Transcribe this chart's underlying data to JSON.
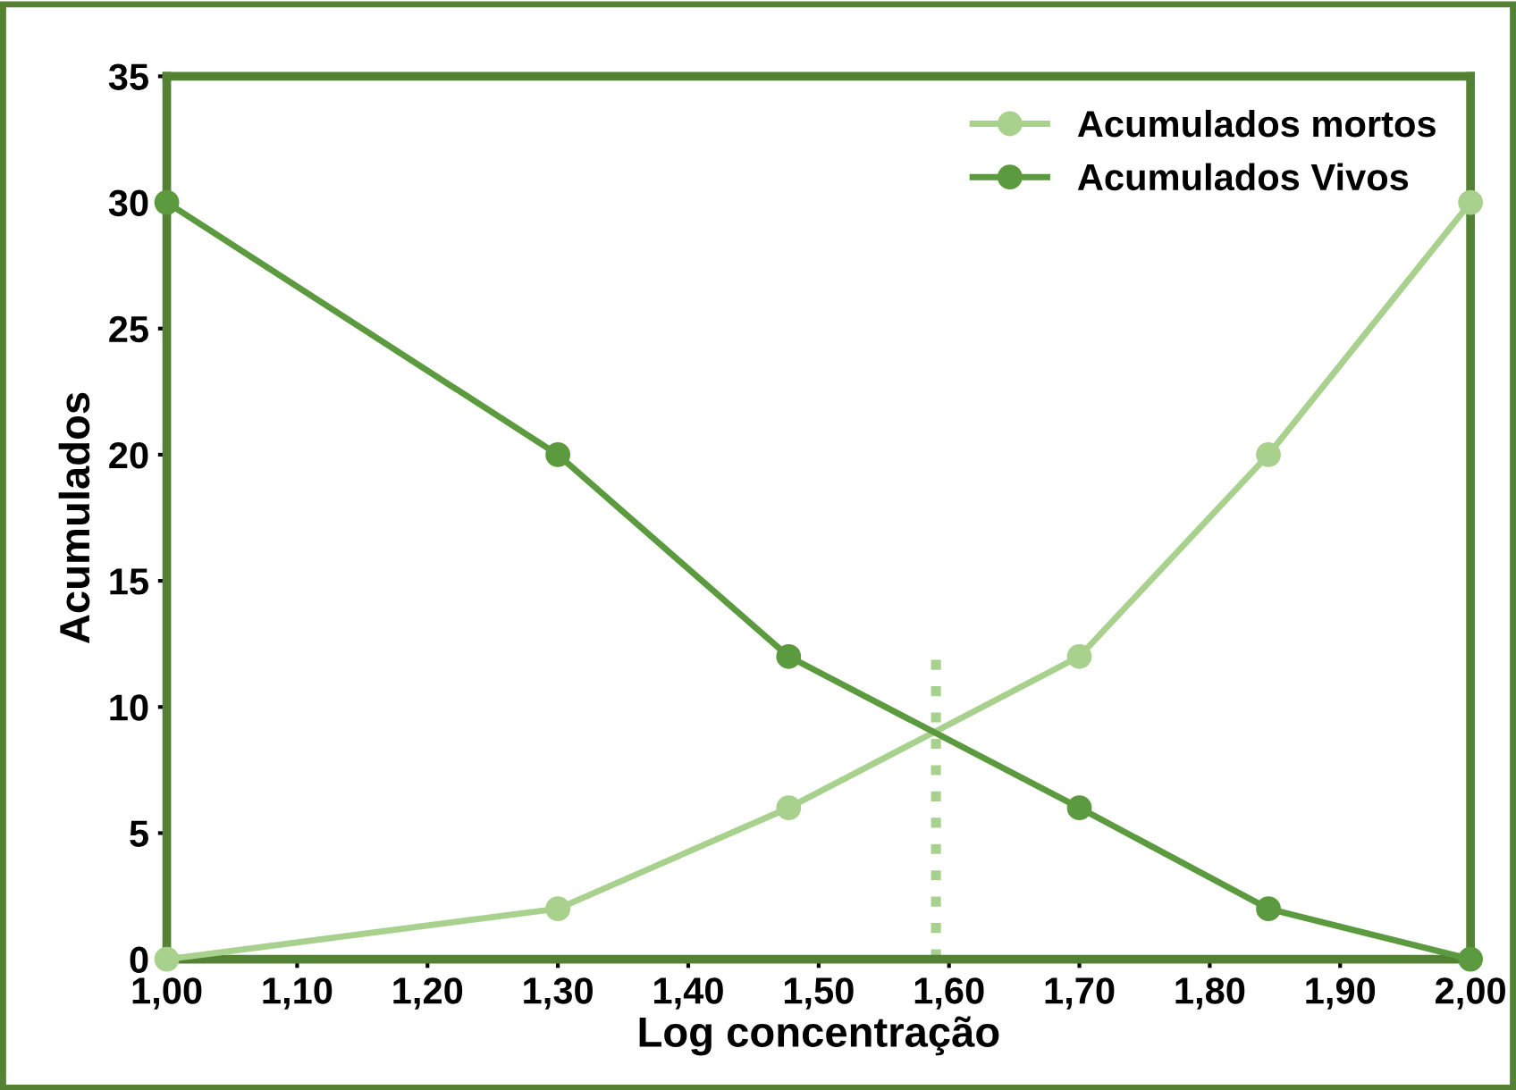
{
  "chart_data": {
    "type": "line",
    "xlabel": "Log concentração",
    "ylabel": "Acumulados",
    "x": [
      1.0,
      1.3,
      1.477,
      1.7,
      1.845,
      2.0
    ],
    "series": [
      {
        "name": "Acumulados mortos",
        "color": "#a9d18e",
        "values": [
          0,
          2,
          6,
          12,
          20,
          30
        ]
      },
      {
        "name": "Acumulados Vivos",
        "color": "#5b9a3e",
        "values": [
          30,
          20,
          12,
          6,
          2,
          0
        ]
      }
    ],
    "xlim": [
      1.0,
      2.0
    ],
    "xticks": [
      {
        "value": 1.0,
        "label": "1,00"
      },
      {
        "value": 1.1,
        "label": "1,10"
      },
      {
        "value": 1.2,
        "label": "1,20"
      },
      {
        "value": 1.3,
        "label": "1,30"
      },
      {
        "value": 1.4,
        "label": "1,40"
      },
      {
        "value": 1.5,
        "label": "1,50"
      },
      {
        "value": 1.6,
        "label": "1,60"
      },
      {
        "value": 1.7,
        "label": "1,70"
      },
      {
        "value": 1.8,
        "label": "1,80"
      },
      {
        "value": 1.9,
        "label": "1,90"
      },
      {
        "value": 2.0,
        "label": "2,00"
      }
    ],
    "ylim": [
      0,
      35
    ],
    "yticks": [
      0,
      5,
      10,
      15,
      20,
      25,
      30,
      35
    ],
    "ref_lines": [
      {
        "axis": "x",
        "value": 1.59,
        "color": "#a9d18e",
        "line_style": "dotted"
      }
    ],
    "marker": "circle",
    "line_style": "solid",
    "grid": false,
    "legend": "top right"
  }
}
